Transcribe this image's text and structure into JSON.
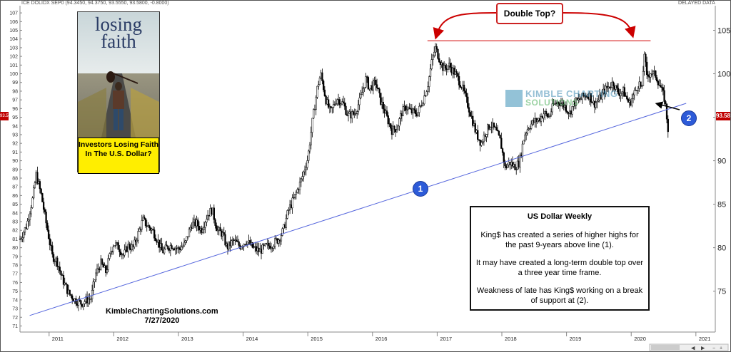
{
  "header": {
    "symbol_info": "ICE DOLIDX SEP0 (94.3450, 94.3750, 93.5550, 93.5800, -0.8000)",
    "status": "DELAYED DATA"
  },
  "book": {
    "title_line1": "losing",
    "title_line2": "faith",
    "caption": "Investors Losing Faith In The U.S. Dollar?"
  },
  "callout": {
    "text": "Double Top?"
  },
  "annotation_box": {
    "title": "US Dollar Weekly",
    "p1": "King$ has created a series of higher highs for the past 9-years above line (1).",
    "p2": "It may have created a long-term double top over a three year time frame.",
    "p3": "Weakness of late has King$ working on a break of support at (2)."
  },
  "watermark": {
    "line1": "KimbleChartingSolutions.com",
    "line2": "7/27/2020"
  },
  "logo": {
    "line1": "KIMBLE CHARTING",
    "line2": "SOLUTIONS"
  },
  "markers": {
    "one": "1",
    "two": "2"
  },
  "last_price_label": "93.58",
  "left_price_label": "93.58",
  "colors": {
    "candle": "#000000",
    "support_line": "#5566dd",
    "resistance_line": "#e05050",
    "arrow": "#cc0000",
    "price_box": "#c00000",
    "marker": "#2d5bd8"
  },
  "chart_data": {
    "type": "candlestick",
    "title": "US Dollar Weekly",
    "x_axis": {
      "ticks": [
        "2011",
        "2012",
        "2013",
        "2014",
        "2015",
        "2016",
        "2017",
        "2018",
        "2019",
        "2020",
        "2021"
      ],
      "range": [
        2010.55,
        2021.3
      ]
    },
    "y_left_axis": {
      "ticks": [
        71,
        72,
        73,
        74,
        75,
        76,
        77,
        78,
        79,
        80,
        81,
        82,
        83,
        84,
        85,
        86,
        87,
        88,
        89,
        90,
        91,
        92,
        93,
        94,
        95,
        96,
        97,
        98,
        99,
        100,
        101,
        102,
        103,
        104,
        105,
        106,
        107
      ],
      "range": [
        70.3,
        107.5
      ]
    },
    "y_right_axis": {
      "ticks": [
        75,
        80,
        85,
        90,
        95,
        100,
        105
      ]
    },
    "series_path": [
      [
        2010.55,
        81.0
      ],
      [
        2010.65,
        82.5
      ],
      [
        2010.75,
        85.8
      ],
      [
        2010.8,
        88.4
      ],
      [
        2010.88,
        86.0
      ],
      [
        2010.95,
        83.0
      ],
      [
        2011.05,
        79.0
      ],
      [
        2011.12,
        78.5
      ],
      [
        2011.2,
        76.5
      ],
      [
        2011.3,
        74.8
      ],
      [
        2011.4,
        74.0
      ],
      [
        2011.5,
        73.6
      ],
      [
        2011.58,
        74.0
      ],
      [
        2011.65,
        74.2
      ],
      [
        2011.72,
        77.0
      ],
      [
        2011.8,
        78.2
      ],
      [
        2011.88,
        77.2
      ],
      [
        2011.95,
        79.5
      ],
      [
        2012.0,
        80.5
      ],
      [
        2012.08,
        80.0
      ],
      [
        2012.15,
        79.1
      ],
      [
        2012.22,
        80.2
      ],
      [
        2012.3,
        80.0
      ],
      [
        2012.37,
        81.5
      ],
      [
        2012.45,
        83.2
      ],
      [
        2012.52,
        82.5
      ],
      [
        2012.6,
        82.0
      ],
      [
        2012.68,
        80.8
      ],
      [
        2012.75,
        79.5
      ],
      [
        2012.82,
        80.0
      ],
      [
        2012.9,
        80.3
      ],
      [
        2013.0,
        79.8
      ],
      [
        2013.1,
        80.4
      ],
      [
        2013.2,
        82.7
      ],
      [
        2013.28,
        82.8
      ],
      [
        2013.35,
        82.0
      ],
      [
        2013.45,
        83.8
      ],
      [
        2013.52,
        84.4
      ],
      [
        2013.6,
        82.0
      ],
      [
        2013.68,
        81.6
      ],
      [
        2013.75,
        80.0
      ],
      [
        2013.85,
        80.8
      ],
      [
        2013.95,
        80.2
      ],
      [
        2014.05,
        80.8
      ],
      [
        2014.15,
        80.0
      ],
      [
        2014.25,
        79.6
      ],
      [
        2014.35,
        80.1
      ],
      [
        2014.45,
        80.4
      ],
      [
        2014.55,
        81.0
      ],
      [
        2014.62,
        82.0
      ],
      [
        2014.7,
        84.3
      ],
      [
        2014.8,
        85.9
      ],
      [
        2014.9,
        87.8
      ],
      [
        2015.0,
        90.3
      ],
      [
        2015.07,
        94.5
      ],
      [
        2015.15,
        98.5
      ],
      [
        2015.2,
        100.0
      ],
      [
        2015.28,
        97.0
      ],
      [
        2015.35,
        95.5
      ],
      [
        2015.45,
        97.2
      ],
      [
        2015.55,
        96.5
      ],
      [
        2015.62,
        95.2
      ],
      [
        2015.72,
        95.4
      ],
      [
        2015.8,
        96.8
      ],
      [
        2015.9,
        99.5
      ],
      [
        2015.95,
        98.3
      ],
      [
        2016.05,
        99.0
      ],
      [
        2016.12,
        97.0
      ],
      [
        2016.22,
        95.0
      ],
      [
        2016.3,
        93.5
      ],
      [
        2016.38,
        93.8
      ],
      [
        2016.45,
        95.5
      ],
      [
        2016.52,
        96.2
      ],
      [
        2016.6,
        95.6
      ],
      [
        2016.7,
        95.5
      ],
      [
        2016.78,
        97.0
      ],
      [
        2016.85,
        98.5
      ],
      [
        2016.92,
        101.5
      ],
      [
        2016.97,
        103.0
      ],
      [
        2017.02,
        102.0
      ],
      [
        2017.1,
        100.5
      ],
      [
        2017.18,
        101.0
      ],
      [
        2017.28,
        100.0
      ],
      [
        2017.38,
        98.6
      ],
      [
        2017.45,
        97.0
      ],
      [
        2017.52,
        95.3
      ],
      [
        2017.6,
        93.2
      ],
      [
        2017.68,
        92.0
      ],
      [
        2017.75,
        93.3
      ],
      [
        2017.82,
        94.2
      ],
      [
        2017.9,
        93.5
      ],
      [
        2017.98,
        92.2
      ],
      [
        2018.05,
        89.2
      ],
      [
        2018.12,
        89.8
      ],
      [
        2018.2,
        89.3
      ],
      [
        2018.27,
        89.8
      ],
      [
        2018.35,
        93.0
      ],
      [
        2018.42,
        94.0
      ],
      [
        2018.5,
        94.5
      ],
      [
        2018.58,
        94.8
      ],
      [
        2018.65,
        95.5
      ],
      [
        2018.72,
        95.0
      ],
      [
        2018.8,
        96.4
      ],
      [
        2018.88,
        96.8
      ],
      [
        2018.97,
        96.3
      ],
      [
        2019.05,
        95.5
      ],
      [
        2019.12,
        96.7
      ],
      [
        2019.2,
        97.0
      ],
      [
        2019.28,
        97.5
      ],
      [
        2019.35,
        97.6
      ],
      [
        2019.42,
        96.5
      ],
      [
        2019.5,
        97.0
      ],
      [
        2019.58,
        98.0
      ],
      [
        2019.65,
        98.5
      ],
      [
        2019.72,
        99.0
      ],
      [
        2019.8,
        97.8
      ],
      [
        2019.88,
        98.0
      ],
      [
        2019.97,
        96.5
      ],
      [
        2020.05,
        97.8
      ],
      [
        2020.12,
        99.0
      ],
      [
        2020.17,
        98.0
      ],
      [
        2020.2,
        102.8
      ],
      [
        2020.24,
        99.5
      ],
      [
        2020.3,
        100.2
      ],
      [
        2020.38,
        99.8
      ],
      [
        2020.45,
        98.5
      ],
      [
        2020.52,
        97.0
      ],
      [
        2020.56,
        94.3
      ],
      [
        2020.57,
        93.58
      ]
    ],
    "double_top_level": 103.8,
    "support_line": {
      "start": [
        2010.7,
        72.2
      ],
      "end": [
        2020.85,
        96.6
      ]
    },
    "last_price": 93.58,
    "annotations": [
      "Double Top?",
      "1",
      "2",
      "US Dollar Weekly",
      "KimbleChartingSolutions.com",
      "7/27/2020"
    ]
  }
}
